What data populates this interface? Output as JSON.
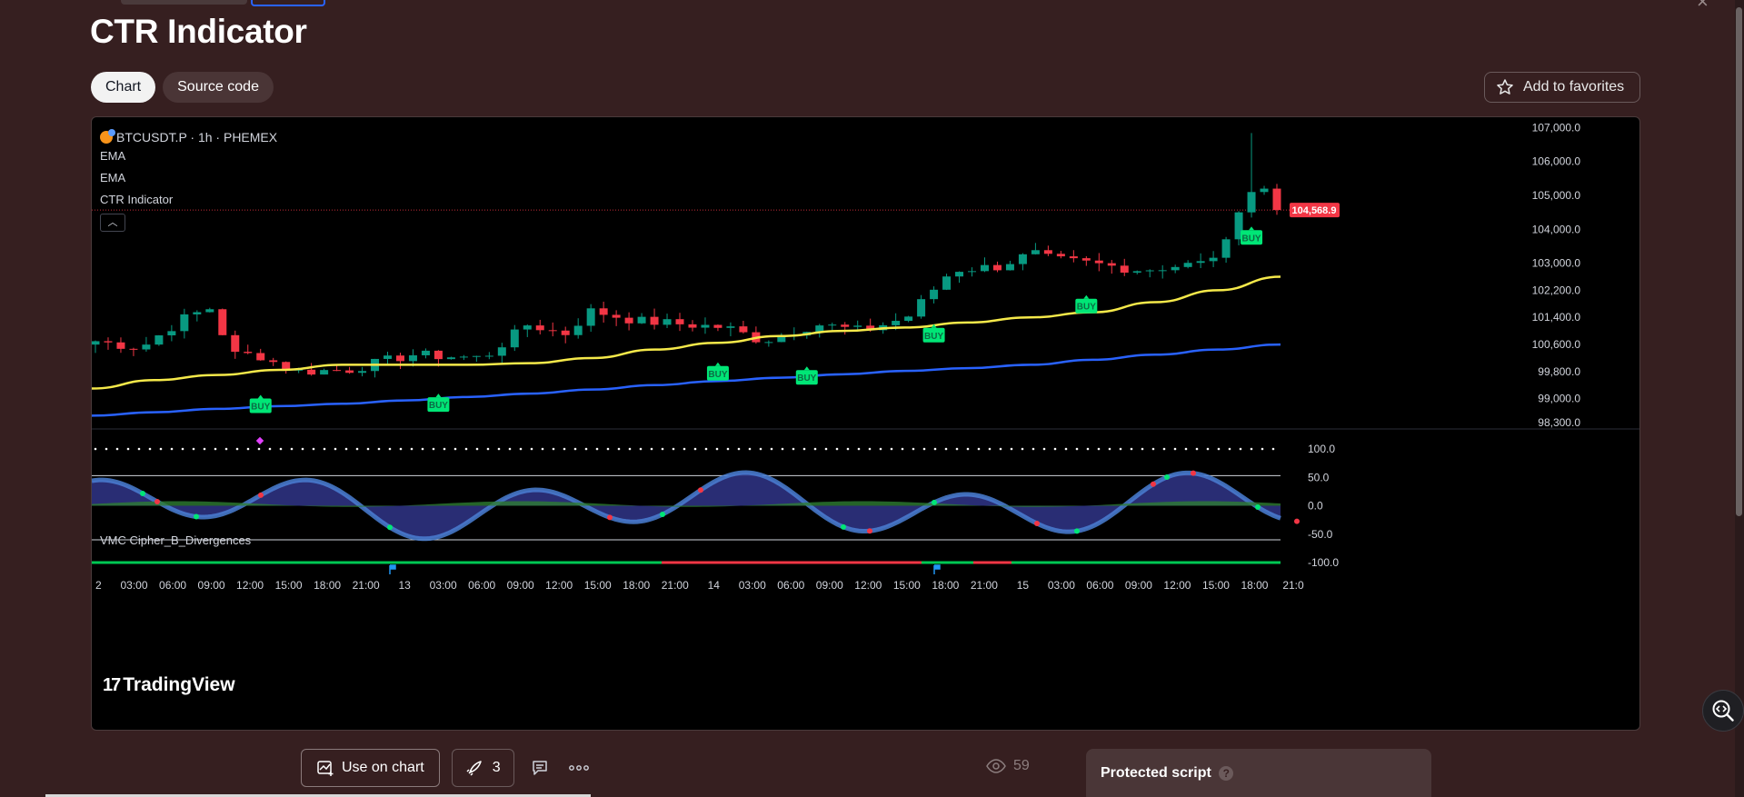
{
  "page": {
    "title": "CTR Indicator"
  },
  "tabs": [
    {
      "label": "Chart"
    },
    {
      "label": "Source code"
    }
  ],
  "favorites": {
    "label": "Add to favorites"
  },
  "legend": {
    "symbol": "BTCUSDT.P · 1h · PHEMEX",
    "lines": [
      "EMA",
      "EMA",
      "CTR Indicator"
    ],
    "collapse_icon": "chevron-up-icon"
  },
  "oscillator": {
    "label": "VMC Cipher_B_Divergences"
  },
  "branding": {
    "logo_text": "TradingView"
  },
  "price_axis": {
    "ticks": [
      "107,000.0",
      "106,000.0",
      "105,000.0",
      "104,000.0",
      "103,000.0",
      "102,200.0",
      "101,400.0",
      "100,600.0",
      "99,800.0",
      "99,000.0",
      "98,300.0"
    ],
    "current_price": "104,568.9"
  },
  "osc_axis": {
    "ticks": [
      "100.0",
      "50.0",
      "0.0",
      "-50.0",
      "-100.0"
    ]
  },
  "time_axis": {
    "ticks": [
      "2",
      "03:00",
      "06:00",
      "09:00",
      "12:00",
      "15:00",
      "18:00",
      "21:00",
      "13",
      "03:00",
      "06:00",
      "09:00",
      "12:00",
      "15:00",
      "18:00",
      "21:00",
      "14",
      "03:00",
      "06:00",
      "09:00",
      "12:00",
      "15:00",
      "18:00",
      "21:00",
      "15",
      "03:00",
      "06:00",
      "09:00",
      "12:00",
      "15:00",
      "18:00",
      "21:0"
    ]
  },
  "signals": {
    "label": "BUY"
  },
  "chart_data": {
    "type": "candlestick",
    "symbol": "BTCUSDT.P",
    "interval": "1h",
    "exchange": "PHEMEX",
    "ylim": [
      98000,
      107200
    ],
    "last_price": 104568.9,
    "ema_fast": [
      99300,
      99550,
      99700,
      99850,
      100000,
      100000,
      100000,
      100050,
      100200,
      100450,
      100650,
      100850,
      101000,
      101100,
      101250,
      101400,
      101550,
      101850,
      102200,
      102600
    ],
    "ema_slow": [
      98500,
      98600,
      98700,
      98780,
      98850,
      98950,
      99050,
      99150,
      99270,
      99400,
      99520,
      99620,
      99720,
      99820,
      99900,
      100000,
      100150,
      100300,
      100450,
      100600
    ],
    "buy_signals": [
      13,
      27,
      49,
      56,
      66,
      78,
      91
    ],
    "oscillator": {
      "name": "VMC Cipher_B_Divergences",
      "ylim": [
        -100,
        100
      ],
      "levels": [
        53,
        -60
      ]
    }
  },
  "footer": {
    "use_on_chart": "Use on chart",
    "boosts": "3",
    "views": "59",
    "protected_title": "Protected script",
    "protected_help": "?"
  },
  "colors": {
    "background": "#361f20",
    "up": "#089981",
    "down": "#f23645",
    "ema_fast": "#f5e94a",
    "ema_slow": "#2962ff",
    "buy": "#00e676",
    "price_tag": "#f23645"
  }
}
